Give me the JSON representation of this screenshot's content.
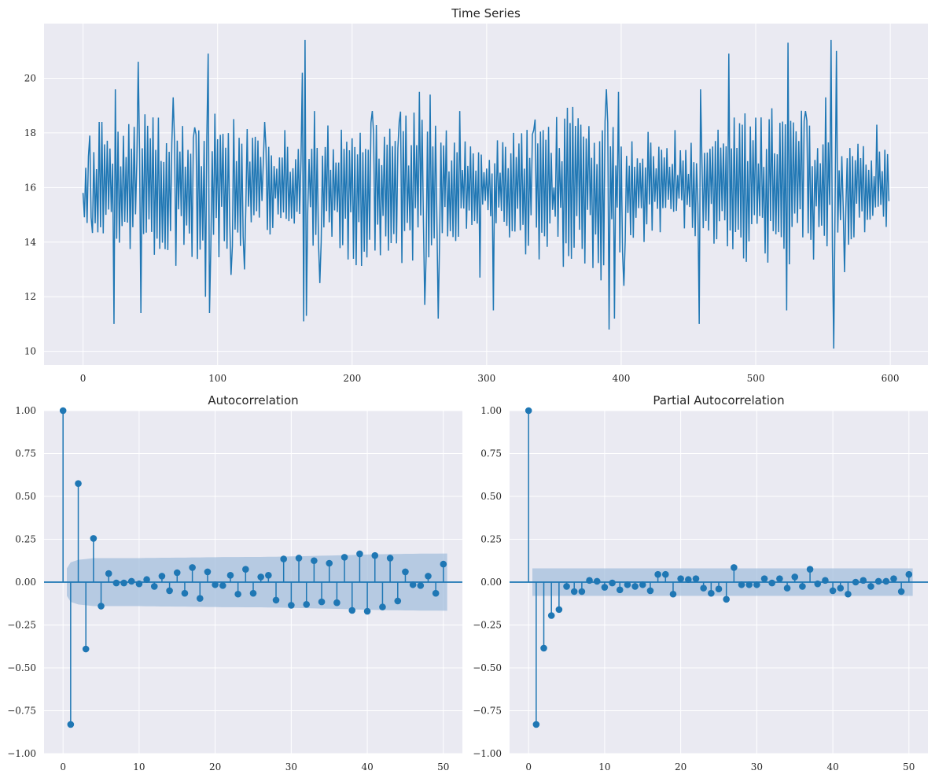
{
  "colors": {
    "line": "#1f77b4",
    "band": "#9fbcdc",
    "background": "#eaeaf2",
    "grid": "#ffffff"
  },
  "chart_data": [
    {
      "id": "timeseries",
      "type": "line",
      "title": "Time Series",
      "xlabel": "",
      "ylabel": "",
      "xlim": [
        -29,
        628
      ],
      "ylim": [
        9.5,
        22.0
      ],
      "xticks": [
        0,
        100,
        200,
        300,
        400,
        500,
        600
      ],
      "yticks": [
        10,
        12,
        14,
        16,
        18,
        20
      ],
      "grid": true,
      "n_points": 600,
      "key_points": [
        [
          0,
          15.8
        ],
        [
          3,
          14.7
        ],
        [
          5,
          17.9
        ],
        [
          6,
          14.9
        ],
        [
          12,
          18.4
        ],
        [
          14,
          18.4
        ],
        [
          23,
          11.0
        ],
        [
          24,
          19.6
        ],
        [
          41,
          11.3
        ],
        [
          41,
          20.6
        ],
        [
          43,
          11.4
        ],
        [
          50,
          17.8
        ],
        [
          67,
          19.3
        ],
        [
          75,
          13.9
        ],
        [
          83,
          18.2
        ],
        [
          91,
          12.0
        ],
        [
          93,
          20.9
        ],
        [
          94,
          11.4
        ],
        [
          110,
          12.8
        ],
        [
          120,
          13.0
        ],
        [
          135,
          18.4
        ],
        [
          150,
          18.1
        ],
        [
          163,
          20.2
        ],
        [
          164,
          11.1
        ],
        [
          165,
          21.4
        ],
        [
          166,
          11.3
        ],
        [
          172,
          18.8
        ],
        [
          176,
          12.5
        ],
        [
          200,
          17.8
        ],
        [
          215,
          18.8
        ],
        [
          235,
          18.4
        ],
        [
          250,
          19.5
        ],
        [
          254,
          11.7
        ],
        [
          258,
          19.4
        ],
        [
          264,
          11.2
        ],
        [
          280,
          18.8
        ],
        [
          295,
          12.7
        ],
        [
          305,
          11.5
        ],
        [
          320,
          18.0
        ],
        [
          335,
          18.1
        ],
        [
          350,
          16.0
        ],
        [
          370,
          18.3
        ],
        [
          385,
          12.6
        ],
        [
          389,
          19.6
        ],
        [
          391,
          10.8
        ],
        [
          395,
          11.2
        ],
        [
          398,
          19.5
        ],
        [
          402,
          12.4
        ],
        [
          440,
          18.1
        ],
        [
          458,
          11.0
        ],
        [
          459,
          19.6
        ],
        [
          470,
          17.7
        ],
        [
          480,
          20.9
        ],
        [
          490,
          18.3
        ],
        [
          510,
          18.5
        ],
        [
          523,
          11.5
        ],
        [
          524,
          21.3
        ],
        [
          537,
          18.8
        ],
        [
          552,
          19.3
        ],
        [
          556,
          21.4
        ],
        [
          558,
          10.1
        ],
        [
          560,
          21.0
        ],
        [
          566,
          12.9
        ],
        [
          574,
          17.0
        ],
        [
          590,
          18.3
        ],
        [
          599,
          15.5
        ]
      ]
    },
    {
      "id": "acf",
      "type": "scatter",
      "title": "Autocorrelation",
      "xlabel": "",
      "ylabel": "",
      "xlim": [
        -2.5,
        52.5
      ],
      "ylim": [
        -1.0,
        1.0
      ],
      "xticks": [
        0,
        10,
        20,
        30,
        40,
        50
      ],
      "yticks": [
        -1.0,
        -0.75,
        -0.5,
        -0.25,
        0.0,
        0.25,
        0.5,
        0.75,
        1.0
      ],
      "ytick_labels": [
        "−1.00",
        "−0.75",
        "−0.50",
        "−0.25",
        "0.00",
        "0.25",
        "0.50",
        "0.75",
        "1.00"
      ],
      "grid": true,
      "lags": [
        0,
        1,
        2,
        3,
        4,
        5,
        6,
        7,
        8,
        9,
        10,
        11,
        12,
        13,
        14,
        15,
        16,
        17,
        18,
        19,
        20,
        21,
        22,
        23,
        24,
        25,
        26,
        27,
        28,
        29,
        30,
        31,
        32,
        33,
        34,
        35,
        36,
        37,
        38,
        39,
        40,
        41,
        42,
        43,
        44,
        45,
        46,
        47,
        48,
        49,
        50
      ],
      "values": [
        1.0,
        -0.83,
        0.575,
        -0.39,
        0.255,
        -0.14,
        0.05,
        -0.005,
        -0.005,
        0.005,
        -0.01,
        0.015,
        -0.025,
        0.035,
        -0.05,
        0.055,
        -0.065,
        0.085,
        -0.095,
        0.06,
        -0.015,
        -0.02,
        0.04,
        -0.07,
        0.075,
        -0.065,
        0.03,
        0.04,
        -0.105,
        0.135,
        -0.135,
        0.14,
        -0.13,
        0.125,
        -0.115,
        0.11,
        -0.12,
        0.145,
        -0.165,
        0.165,
        -0.17,
        0.155,
        -0.145,
        0.14,
        -0.11,
        0.06,
        -0.015,
        -0.02,
        0.035,
        -0.065,
        0.105
      ],
      "confint_upper": [
        0.08,
        0.115,
        0.13,
        0.135,
        0.14,
        0.14,
        0.14,
        0.14,
        0.14,
        0.14,
        0.14,
        0.141,
        0.141,
        0.142,
        0.142,
        0.143,
        0.143,
        0.144,
        0.144,
        0.145,
        0.145,
        0.146,
        0.146,
        0.146,
        0.147,
        0.147,
        0.147,
        0.148,
        0.148,
        0.149,
        0.15,
        0.151,
        0.152,
        0.153,
        0.154,
        0.155,
        0.156,
        0.157,
        0.158,
        0.16,
        0.161,
        0.162,
        0.163,
        0.164,
        0.164,
        0.165,
        0.165,
        0.166,
        0.166,
        0.166,
        0.167
      ]
    },
    {
      "id": "pacf",
      "type": "scatter",
      "title": "Partial Autocorrelation",
      "xlabel": "",
      "ylabel": "",
      "xlim": [
        -2.5,
        52.5
      ],
      "ylim": [
        -1.0,
        1.0
      ],
      "xticks": [
        0,
        10,
        20,
        30,
        40,
        50
      ],
      "yticks": [
        -1.0,
        -0.75,
        -0.5,
        -0.25,
        0.0,
        0.25,
        0.5,
        0.75,
        1.0
      ],
      "ytick_labels": [
        "−1.00",
        "−0.75",
        "−0.50",
        "−0.25",
        "0.00",
        "0.25",
        "0.50",
        "0.75",
        "1.00"
      ],
      "grid": true,
      "lags": [
        0,
        1,
        2,
        3,
        4,
        5,
        6,
        7,
        8,
        9,
        10,
        11,
        12,
        13,
        14,
        15,
        16,
        17,
        18,
        19,
        20,
        21,
        22,
        23,
        24,
        25,
        26,
        27,
        28,
        29,
        30,
        31,
        32,
        33,
        34,
        35,
        36,
        37,
        38,
        39,
        40,
        41,
        42,
        43,
        44,
        45,
        46,
        47,
        48,
        49,
        50
      ],
      "values": [
        1.0,
        -0.83,
        -0.385,
        -0.195,
        -0.16,
        -0.025,
        -0.055,
        -0.055,
        0.01,
        0.005,
        -0.03,
        -0.005,
        -0.045,
        -0.015,
        -0.025,
        -0.015,
        -0.05,
        0.045,
        0.045,
        -0.07,
        0.02,
        0.015,
        0.02,
        -0.035,
        -0.065,
        -0.04,
        -0.1,
        0.085,
        -0.015,
        -0.015,
        -0.015,
        0.02,
        -0.005,
        0.02,
        -0.035,
        0.03,
        -0.025,
        0.075,
        -0.01,
        0.01,
        -0.05,
        -0.035,
        -0.07,
        0.0,
        0.01,
        -0.025,
        0.005,
        0.005,
        0.02,
        -0.055,
        0.045
      ],
      "confint_upper": 0.08
    }
  ]
}
